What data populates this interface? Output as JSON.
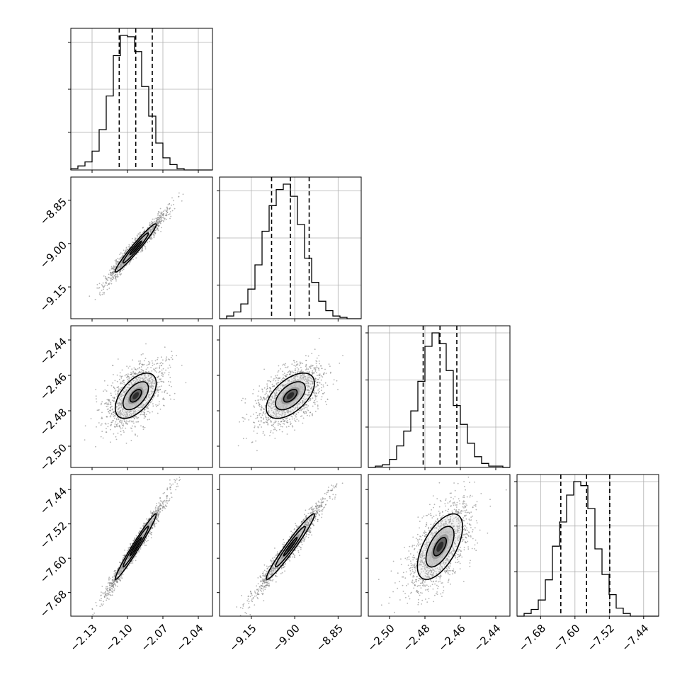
{
  "chart_data": {
    "type": "corner",
    "grid": true,
    "parameters": [
      {
        "ticks": [
          -2.13,
          -2.1,
          -2.07,
          -2.04
        ],
        "tick_labels": [
          "−2.13",
          "−2.10",
          "−2.07",
          "−2.04"
        ],
        "range": [
          -2.148,
          -2.028
        ],
        "quantiles": [
          -2.107,
          -2.093,
          -2.079
        ],
        "mean": -2.093,
        "sd": 0.0125
      },
      {
        "ticks": [
          -9.15,
          -9.0,
          -8.85
        ],
        "tick_labels": [
          "−9.15",
          "−9.00",
          "−8.85"
        ],
        "range": [
          -9.26,
          -8.77
        ],
        "quantiles": [
          -9.08,
          -9.015,
          -8.95
        ],
        "mean": -9.015,
        "sd": 0.06
      },
      {
        "ticks": [
          -2.5,
          -2.48,
          -2.46,
          -2.44
        ],
        "tick_labels": [
          "−2.50",
          "−2.48",
          "−2.46",
          "−2.44"
        ],
        "range": [
          -2.512,
          -2.432
        ],
        "quantiles": [
          -2.481,
          -2.4715,
          -2.462
        ],
        "mean": -2.4715,
        "sd": 0.0092
      },
      {
        "ticks": [
          -7.68,
          -7.6,
          -7.52,
          -7.44
        ],
        "tick_labels": [
          "−7.68",
          "−7.60",
          "−7.52",
          "−7.44"
        ],
        "range": [
          -7.735,
          -7.405
        ],
        "quantiles": [
          -7.633,
          -7.573,
          -7.519
        ],
        "mean": -7.573,
        "sd": 0.055
      }
    ],
    "histograms": [
      {
        "parameter": 0,
        "bins": 20,
        "counts": [
          1,
          3,
          6,
          14,
          30,
          55,
          85,
          100,
          99,
          88,
          62,
          40,
          20,
          9,
          4,
          1,
          0,
          0,
          0,
          0
        ],
        "yticks": [
          0.28,
          0.6,
          0.95
        ]
      },
      {
        "parameter": 1,
        "bins": 20,
        "counts": [
          0,
          2,
          5,
          11,
          22,
          40,
          65,
          84,
          96,
          100,
          91,
          70,
          45,
          27,
          13,
          6,
          2,
          1,
          0,
          0
        ],
        "yticks": [
          0.25,
          0.6,
          0.95
        ]
      },
      {
        "parameter": 2,
        "bins": 20,
        "counts": [
          0,
          1,
          2,
          6,
          16,
          27,
          42,
          64,
          90,
          100,
          92,
          72,
          46,
          32,
          18,
          8,
          3,
          1,
          1,
          0
        ],
        "yticks": [
          0.3,
          0.65,
          1.0
        ]
      },
      {
        "parameter": 3,
        "bins": 20,
        "counts": [
          0,
          2,
          5,
          12,
          27,
          52,
          70,
          90,
          100,
          97,
          80,
          50,
          31,
          16,
          6,
          2,
          0,
          0,
          0,
          0
        ],
        "yticks": [
          0.33,
          0.67,
          1.0
        ]
      }
    ],
    "correlations": [
      {
        "x": 0,
        "y": 1,
        "r": 0.97
      },
      {
        "x": 0,
        "y": 2,
        "r": 0.55
      },
      {
        "x": 1,
        "y": 2,
        "r": 0.55
      },
      {
        "x": 0,
        "y": 3,
        "r": 0.98
      },
      {
        "x": 1,
        "y": 3,
        "r": 0.97
      },
      {
        "x": 2,
        "y": 3,
        "r": 0.6
      }
    ],
    "contour_levels": [
      0.39,
      0.86,
      1.39
    ]
  }
}
